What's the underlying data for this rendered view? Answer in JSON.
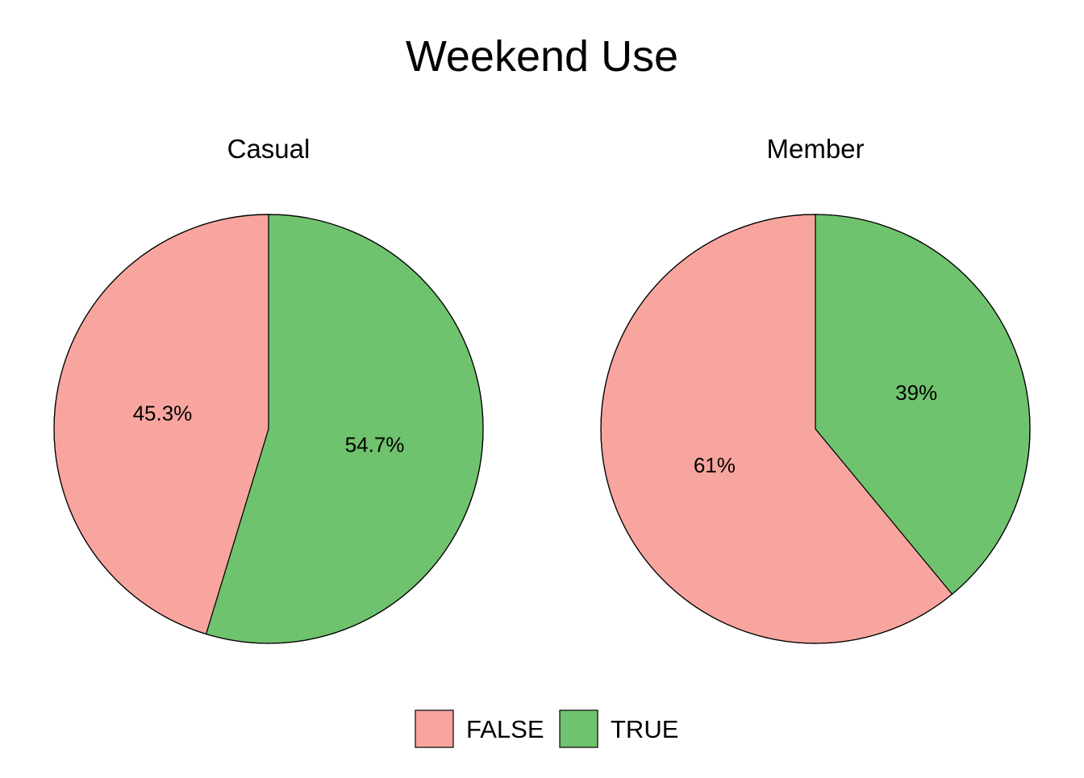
{
  "chart_data": {
    "type": "pie",
    "title": "Weekend Use",
    "categories": [
      "FALSE",
      "TRUE"
    ],
    "colors": {
      "FALSE": "#F8A59F",
      "TRUE": "#70C36E"
    },
    "panels": [
      {
        "name": "Casual",
        "values": [
          45.3,
          54.7
        ],
        "labels": [
          "45.3%",
          "54.7%"
        ]
      },
      {
        "name": "Member",
        "values": [
          61,
          39
        ],
        "labels": [
          "61%",
          "39%"
        ]
      }
    ],
    "legend": {
      "position": "bottom",
      "entries": [
        "FALSE",
        "TRUE"
      ]
    }
  }
}
